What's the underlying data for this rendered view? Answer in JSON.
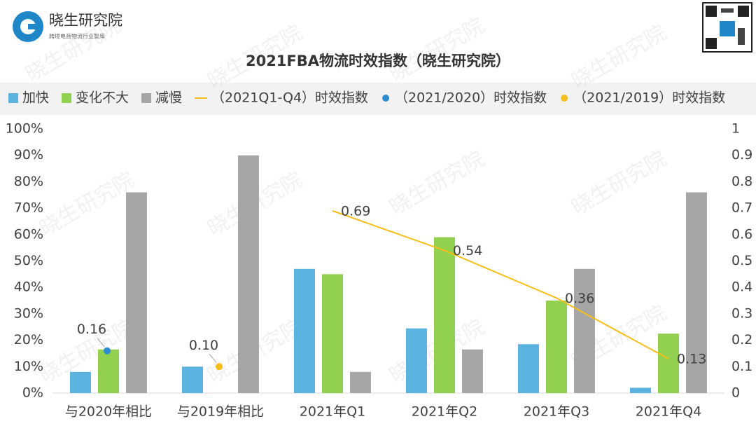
{
  "brand": {
    "name": "晓生研究院",
    "tagline": "跨境电商物流行业智库"
  },
  "watermark": "晓生研究院",
  "chart_data": {
    "type": "bar",
    "title": "2021FBA物流时效指数（晓生研究院）",
    "categories": [
      "与2020年相比",
      "与2019年相比",
      "2021年Q1",
      "2021年Q2",
      "2021年Q3",
      "2021年Q4"
    ],
    "series": [
      {
        "name": "加快",
        "type": "bar",
        "color": "#5BB4E0",
        "values": [
          8,
          10,
          47,
          24.5,
          18.5,
          2
        ]
      },
      {
        "name": "变化不大",
        "type": "bar",
        "color": "#92D050",
        "values": [
          16.5,
          null,
          45,
          59,
          35,
          22.5
        ]
      },
      {
        "name": "减慢",
        "type": "bar",
        "color": "#A6A6A6",
        "values": [
          76,
          90,
          8,
          16.5,
          47,
          76
        ]
      },
      {
        "name": "（2021Q1-Q4）时效指数",
        "type": "line",
        "axis": "y2",
        "color": "#F5BE1A",
        "values": [
          null,
          null,
          0.69,
          0.54,
          0.36,
          0.13
        ]
      },
      {
        "name": "（2021/2020）时效指数",
        "type": "scatter",
        "axis": "y2",
        "color": "#2E8BD0",
        "values": [
          0.16,
          null,
          null,
          null,
          null,
          null
        ]
      },
      {
        "name": "（2021/2019）时效指数",
        "type": "scatter",
        "axis": "y2",
        "color": "#F5BE1A",
        "values": [
          null,
          0.1,
          null,
          null,
          null,
          null
        ],
        "value_labels": [
          null,
          "0.10",
          null,
          null,
          null,
          null
        ]
      }
    ],
    "ylim": [
      0,
      100
    ],
    "yticks": [
      {
        "value": 0,
        "label": "0%"
      },
      {
        "value": 10,
        "label": "10%"
      },
      {
        "value": 20,
        "label": "20%"
      },
      {
        "value": 30,
        "label": "30%"
      },
      {
        "value": 40,
        "label": "40%"
      },
      {
        "value": 50,
        "label": "50%"
      },
      {
        "value": 60,
        "label": "60%"
      },
      {
        "value": 70,
        "label": "70%"
      },
      {
        "value": 80,
        "label": "80%"
      },
      {
        "value": 90,
        "label": "90%"
      },
      {
        "value": 100,
        "label": "100%"
      }
    ],
    "y2lim": [
      0,
      1
    ],
    "y2ticks": [
      0,
      0.1,
      0.2,
      0.3,
      0.4,
      0.5,
      0.6,
      0.7,
      0.8,
      0.9,
      1
    ],
    "legend": "top"
  }
}
